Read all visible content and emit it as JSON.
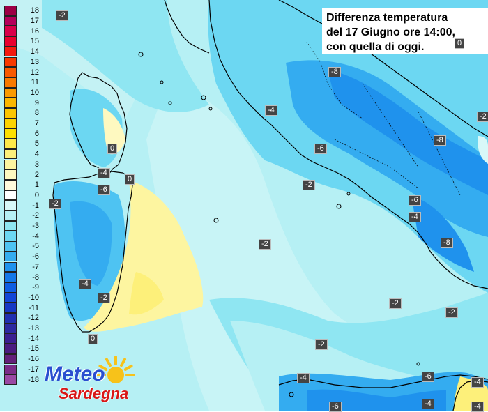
{
  "title": {
    "lines": [
      "Differenza temperatura",
      "del 17 Giugno ore 14:00,",
      "con quella di oggi."
    ]
  },
  "legend": {
    "values": [
      "18",
      "17",
      "16",
      "15",
      "14",
      "13",
      "12",
      "11",
      "10",
      "9",
      "8",
      "7",
      "6",
      "5",
      "4",
      "3",
      "2",
      "1",
      "0",
      "-1",
      "-2",
      "-3",
      "-4",
      "-5",
      "-6",
      "-7",
      "-8",
      "-9",
      "-10",
      "-11",
      "-12",
      "-13",
      "-14",
      "-15",
      "-16",
      "-17",
      "-18"
    ],
    "colors": [
      "#9c0045",
      "#b4005a",
      "#d8004a",
      "#e8002e",
      "#f31a0e",
      "#f73a00",
      "#f85a00",
      "#f87a00",
      "#f99a00",
      "#fab600",
      "#fbc600",
      "#fcd400",
      "#fde000",
      "#fde94a",
      "#fdf07a",
      "#fdf5a0",
      "#fef9c0",
      "#fffbdc",
      "#ffffff",
      "#d8f8f8",
      "#b6f0f4",
      "#8fe6f2",
      "#6cd7f2",
      "#4ec3f2",
      "#34acf0",
      "#1f92ed",
      "#1478e8",
      "#0f5ee2",
      "#1246d6",
      "#1638c4",
      "#2030b0",
      "#2c2aa0",
      "#3a2090",
      "#4a1c80",
      "#62207a",
      "#7a2c88",
      "#9a48a4"
    ]
  },
  "labels": {
    "m2_topleft": "-2",
    "m2_sardinia_w": "-2",
    "m6_sardinia": "-6",
    "m4_sardinia_sw": "-4",
    "m2_sardinia_s": "-2",
    "z_south_tip": "0",
    "m4_strait": "-4",
    "z_strait": "0",
    "z_corsica": "0",
    "m8_north": "-8",
    "m4_tuscany": "-4",
    "m6_lazio": "-6",
    "m2_tyrr_n": "-2",
    "m2_tyrr_mid": "-2",
    "m2_tyrr_s": "-2",
    "m2_s_center": "-2",
    "m6_campania": "-6",
    "m4_campania": "-4",
    "m8_calabria": "-8",
    "m8_east": "-8",
    "m2_e_edge": "-2",
    "m2_ionian": "-2",
    "m4_sicily_w": "-4",
    "m6_sicily": "-6",
    "m6_sicily_s": "-6",
    "m4_sicily_e": "-4",
    "m4_e_bottom": "-4",
    "m4_bottom_r": "-4",
    "z_top_right": "0"
  },
  "logo": {
    "word1": "Meteo",
    "word2": "Sardegna",
    "colors": {
      "blue": "#2a4fd0",
      "red": "#d81818",
      "sun": "#f7c21a"
    }
  }
}
